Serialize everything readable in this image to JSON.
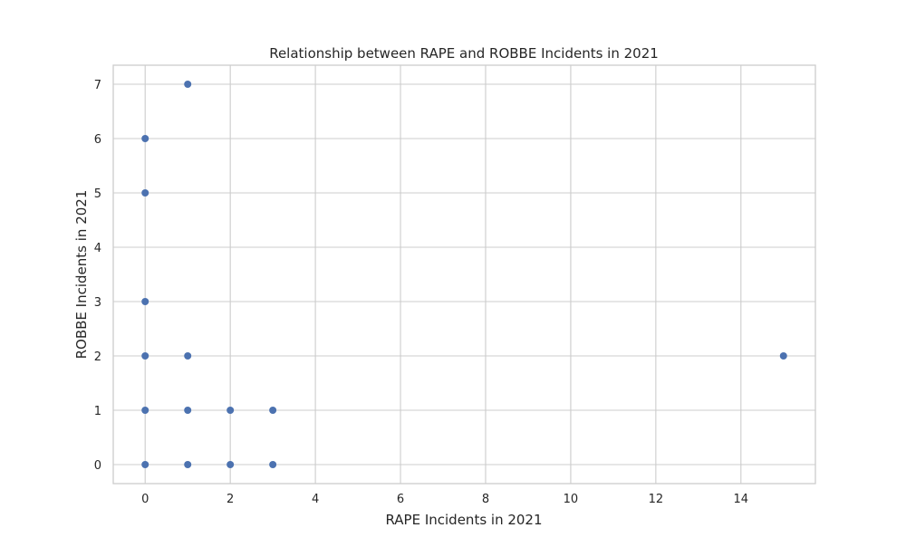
{
  "chart_data": {
    "type": "scatter",
    "title": "Relationship between RAPE and ROBBE Incidents in 2021",
    "xlabel": "RAPE Incidents in 2021",
    "ylabel": "ROBBE Incidents in 2021",
    "xlim": [
      -0.75,
      15.75
    ],
    "ylim": [
      -0.35,
      7.35
    ],
    "xticks": [
      0,
      2,
      4,
      6,
      8,
      10,
      12,
      14
    ],
    "yticks": [
      0,
      1,
      2,
      3,
      4,
      5,
      6,
      7
    ],
    "grid": true,
    "point_color": "#4c72b0",
    "grid_color": "#cccccc",
    "points": [
      {
        "x": 1,
        "y": 7
      },
      {
        "x": 0,
        "y": 6
      },
      {
        "x": 0,
        "y": 5
      },
      {
        "x": 0,
        "y": 3
      },
      {
        "x": 0,
        "y": 2
      },
      {
        "x": 1,
        "y": 2
      },
      {
        "x": 0,
        "y": 1
      },
      {
        "x": 1,
        "y": 1
      },
      {
        "x": 2,
        "y": 1
      },
      {
        "x": 3,
        "y": 1
      },
      {
        "x": 0,
        "y": 0
      },
      {
        "x": 1,
        "y": 0
      },
      {
        "x": 2,
        "y": 0
      },
      {
        "x": 3,
        "y": 0
      },
      {
        "x": 15,
        "y": 2
      }
    ]
  }
}
